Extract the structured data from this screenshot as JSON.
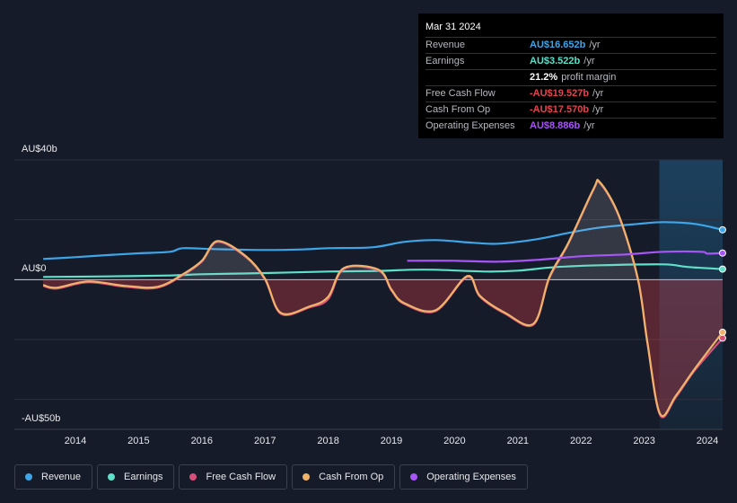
{
  "chart_data": {
    "type": "line",
    "xlim": [
      2013.034,
      2024.241
    ],
    "xticks": [
      2014,
      2015,
      2016,
      2017,
      2018,
      2019,
      2020,
      2021,
      2022,
      2023,
      2024
    ],
    "ylim": [
      -50,
      40
    ],
    "yticks": [
      {
        "value": 40,
        "label": "AU$40b"
      },
      {
        "value": 0,
        "label": "AU$0"
      },
      {
        "value": -50,
        "label": "-AU$50b"
      }
    ],
    "grid": [
      40,
      20,
      0,
      -20,
      -40
    ],
    "highlight_from": 2023.24,
    "series": [
      {
        "name": "Revenue",
        "color": "#3ea5e8",
        "x": [
          2013.49,
          2014.0,
          2014.5,
          2015.0,
          2015.5,
          2015.7,
          2016.2,
          2017.0,
          2017.6,
          2018.0,
          2018.7,
          2019.2,
          2019.7,
          2020.3,
          2020.7,
          2021.3,
          2021.8,
          2022.3,
          2022.9,
          2023.3,
          2023.8,
          2024.24
        ],
        "values": [
          6.9,
          7.5,
          8.2,
          8.8,
          9.3,
          10.5,
          10.2,
          9.9,
          10.1,
          10.5,
          10.8,
          12.6,
          13.2,
          12.3,
          12.0,
          13.5,
          15.6,
          17.4,
          18.6,
          19.2,
          18.6,
          16.652
        ]
      },
      {
        "name": "Earnings",
        "color": "#5ee0c9",
        "x": [
          2013.49,
          2014.5,
          2015.5,
          2016.0,
          2017.0,
          2018.0,
          2018.8,
          2019.3,
          2019.7,
          2020.5,
          2021.0,
          2021.6,
          2022.3,
          2023.3,
          2023.7,
          2024.24
        ],
        "values": [
          0.9,
          1.1,
          1.4,
          1.8,
          2.2,
          2.7,
          2.9,
          3.3,
          3.3,
          2.7,
          3.0,
          4.2,
          4.8,
          5.1,
          4.2,
          3.522
        ]
      },
      {
        "name": "Free Cash Flow",
        "color": "#d64f7b",
        "x": [
          2013.49,
          2013.7,
          2014.2,
          2014.8,
          2015.3,
          2015.7,
          2016.0,
          2016.25,
          2016.7,
          2017.0,
          2017.25,
          2017.7,
          2018.0,
          2018.25,
          2018.8,
          2019.0,
          2019.2,
          2019.7,
          2020.2,
          2020.4,
          2020.8,
          2021.25,
          2021.5,
          2021.8,
          2022.2,
          2022.3,
          2022.6,
          2022.9,
          2023.05,
          2023.25,
          2023.5,
          2023.8,
          2024.24
        ],
        "values": [
          -2.1,
          -3,
          -0.9,
          -2.4,
          -2.7,
          1.5,
          6,
          12.6,
          7.5,
          0,
          -11.4,
          -9.3,
          -6.5,
          3.6,
          3,
          -3.6,
          -8.1,
          -10.5,
          0.9,
          -5.7,
          -11.4,
          -15,
          0.5,
          12,
          30.1,
          32.2,
          21.1,
          0,
          -21.2,
          -45.2,
          -39.3,
          -30.3,
          -19.527
        ]
      },
      {
        "name": "Cash From Op",
        "color": "#f0b36a",
        "x": [
          2013.49,
          2013.7,
          2014.2,
          2014.8,
          2015.3,
          2015.7,
          2016.0,
          2016.25,
          2016.7,
          2017.0,
          2017.25,
          2017.7,
          2018.0,
          2018.25,
          2018.8,
          2019.0,
          2019.2,
          2019.7,
          2020.2,
          2020.4,
          2020.8,
          2021.25,
          2021.5,
          2021.8,
          2022.2,
          2022.3,
          2022.6,
          2022.9,
          2023.05,
          2023.25,
          2023.5,
          2023.8,
          2024.24
        ],
        "values": [
          -1.8,
          -2.7,
          -0.6,
          -2.1,
          -2.4,
          1.8,
          6.3,
          12.9,
          7.8,
          0.3,
          -11.1,
          -9,
          -5.7,
          3.9,
          3.3,
          -3.3,
          -7.8,
          -10.2,
          1.2,
          -5.4,
          -11.1,
          -14.7,
          0.9,
          12.3,
          30.4,
          32.5,
          21.4,
          0.3,
          -20.8,
          -44.8,
          -38.8,
          -29.8,
          -17.57
        ]
      },
      {
        "name": "Operating Expenses",
        "color": "#a855f7",
        "x": [
          2019.25,
          2020.0,
          2020.7,
          2021.3,
          2022.0,
          2022.7,
          2023.3,
          2023.9,
          2024.0,
          2024.24
        ],
        "values": [
          6.3,
          6.3,
          6.0,
          6.6,
          7.8,
          8.4,
          9.3,
          9.3,
          8.7,
          8.886
        ]
      }
    ]
  },
  "tooltip": {
    "date": "Mar 31 2024",
    "rows": [
      {
        "label": "Revenue",
        "value": "AU$16.652b",
        "suffix": "/yr",
        "color": "#3ea5e8"
      },
      {
        "label": "Earnings",
        "value": "AU$3.522b",
        "suffix": "/yr",
        "color": "#5ee0c9"
      },
      {
        "value": "21.2%",
        "suffix": "profit margin",
        "color": "#ffffff"
      },
      {
        "label": "Free Cash Flow",
        "value": "-AU$19.527b",
        "suffix": "/yr",
        "color": "#e0454f"
      },
      {
        "label": "Cash From Op",
        "value": "-AU$17.570b",
        "suffix": "/yr",
        "color": "#e0454f"
      },
      {
        "label": "Operating Expenses",
        "value": "AU$8.886b",
        "suffix": "/yr",
        "color": "#a855f7"
      }
    ]
  }
}
